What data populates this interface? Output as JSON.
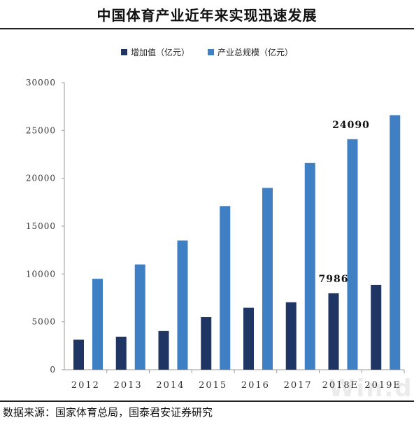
{
  "header": {
    "title": "中国体育产业近年来实现迅速发展"
  },
  "footer": {
    "source": "数据来源：国家体育总局，国泰君安证券研究"
  },
  "watermark": "Win.d",
  "chart_data": {
    "type": "bar",
    "title": "中国体育产业近年来实现迅速发展",
    "xlabel": "",
    "ylabel": "",
    "categories": [
      "2012",
      "2013",
      "2014",
      "2015",
      "2016",
      "2017",
      "2018E",
      "2019E"
    ],
    "series": [
      {
        "name": "增加值（亿元）",
        "color": "#1f3563",
        "values": [
          3140,
          3450,
          4040,
          5490,
          6470,
          7050,
          7986,
          8860
        ]
      },
      {
        "name": "产业总规模（亿元）",
        "color": "#3f7fc4",
        "values": [
          9500,
          11000,
          13500,
          17100,
          19000,
          21600,
          24090,
          26600
        ]
      }
    ],
    "ylim": [
      0,
      30000
    ],
    "yticks": [
      0,
      5000,
      10000,
      15000,
      20000,
      25000,
      30000
    ],
    "ytick_labels": [
      "0",
      "5000",
      "10000",
      "15000",
      "20000",
      "25000",
      "30000"
    ],
    "annotations": [
      {
        "category": "2018E",
        "series": 0,
        "text": "7986"
      },
      {
        "category": "2018E",
        "series": 1,
        "text": "24090"
      }
    ],
    "legend_position": "top",
    "grid": false
  }
}
